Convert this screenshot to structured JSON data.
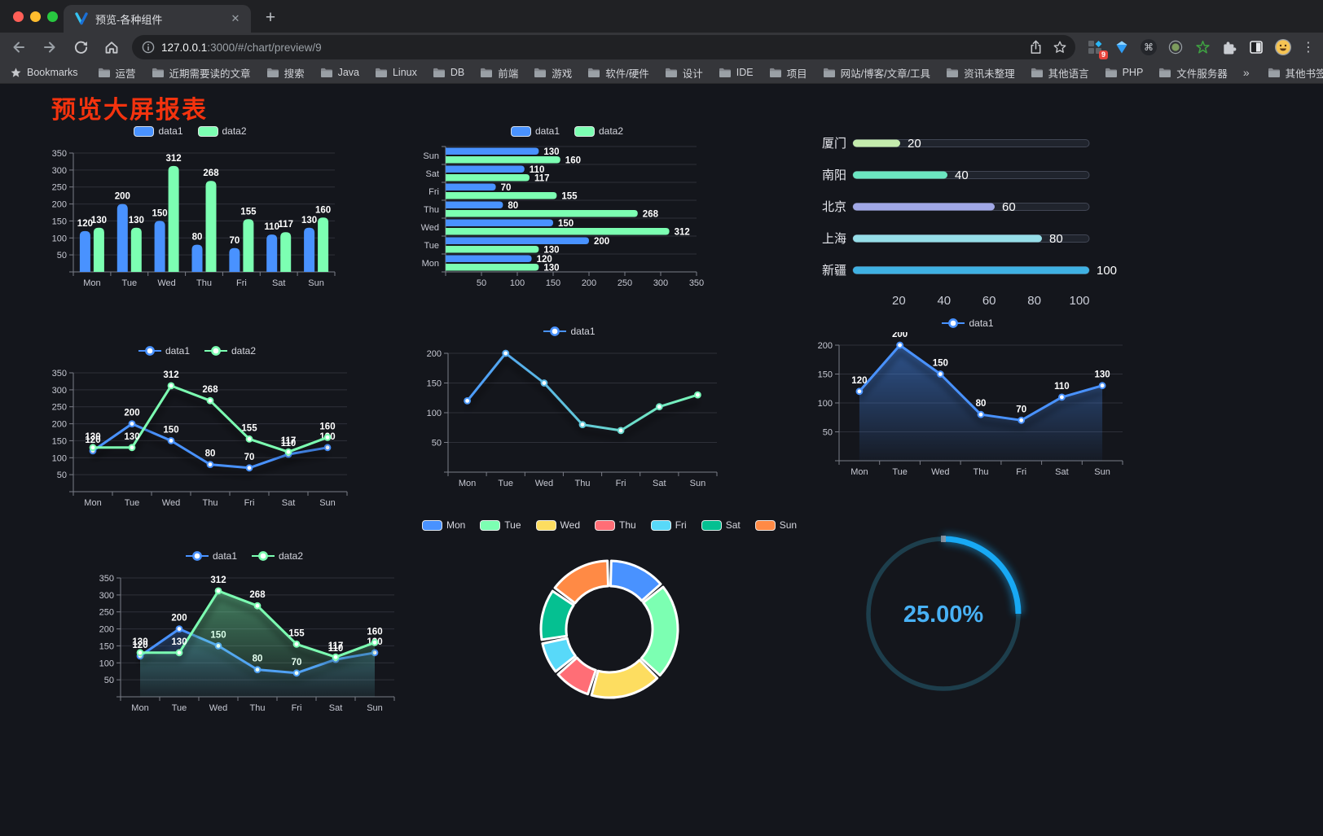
{
  "browser": {
    "tab_title": "预览-各种组件",
    "close_glyph": "✕",
    "new_tab_glyph": "+",
    "url_host": "127.0.0.1",
    "url_path": ":3000/#/chart/preview/9",
    "extensions_badge": "9",
    "menu_glyph": "⋮",
    "command_glyph": "⌘",
    "bookmarks_label": "Bookmarks",
    "bookmarks": [
      "运营",
      "近期需要读的文章",
      "搜索",
      "Java",
      "Linux",
      "DB",
      "前端",
      "游戏",
      "软件/硬件",
      "设计",
      "IDE",
      "项目",
      "网站/博客/文章/工具",
      "资讯未整理",
      "其他语言",
      "PHP",
      "文件服务器"
    ],
    "bookmarks_overflow": "»",
    "other_bookmarks": "其他书签",
    "window_buttons": [
      {
        "name": "close",
        "color": "#ff5f57"
      },
      {
        "name": "minimize",
        "color": "#febc2e"
      },
      {
        "name": "zoom",
        "color": "#28c840"
      }
    ]
  },
  "page": {
    "title": "预览大屏报表",
    "title_color": "#f4330e"
  },
  "chart_data": [
    {
      "id": "bar-grouped",
      "type": "bar",
      "categories": [
        "Mon",
        "Tue",
        "Wed",
        "Thu",
        "Fri",
        "Sat",
        "Sun"
      ],
      "series": [
        {
          "name": "data1",
          "color": "#4992ff",
          "values": [
            120,
            200,
            150,
            80,
            70,
            110,
            130
          ]
        },
        {
          "name": "data2",
          "color": "#7cffb2",
          "values": [
            130,
            130,
            312,
            268,
            155,
            117,
            160
          ]
        }
      ],
      "ylim": [
        0,
        350
      ],
      "yticks": [
        0,
        50,
        100,
        150,
        200,
        250,
        300,
        350
      ],
      "labels": true,
      "legend": true,
      "grid": true
    },
    {
      "id": "bar-horizontal",
      "type": "hbar",
      "categories": [
        "Sun",
        "Sat",
        "Fri",
        "Thu",
        "Wed",
        "Tue",
        "Mon"
      ],
      "series": [
        {
          "name": "data1",
          "color": "#4992ff",
          "values": [
            130,
            110,
            70,
            80,
            150,
            200,
            120
          ]
        },
        {
          "name": "data2",
          "color": "#7cffb2",
          "values": [
            160,
            117,
            155,
            268,
            312,
            130,
            130
          ]
        }
      ],
      "xlim": [
        0,
        350
      ],
      "xticks": [
        0,
        50,
        100,
        150,
        200,
        250,
        300,
        350
      ],
      "labels": true,
      "legend": true,
      "grid": true
    },
    {
      "id": "progress-bars",
      "type": "progress",
      "rows": [
        {
          "label": "厦门",
          "value": 20,
          "color": "#c4ebad"
        },
        {
          "label": "南阳",
          "value": 40,
          "color": "#6be6c1"
        },
        {
          "label": "北京",
          "value": 60,
          "color": "#a0a7e6"
        },
        {
          "label": "上海",
          "value": 80,
          "color": "#96dee8"
        },
        {
          "label": "新疆",
          "value": 100,
          "color": "#3fb1e3"
        }
      ],
      "xlim": [
        0,
        100
      ],
      "xticks": [
        0,
        20,
        40,
        60,
        80,
        100
      ]
    },
    {
      "id": "line-dual",
      "type": "line",
      "categories": [
        "Mon",
        "Tue",
        "Wed",
        "Thu",
        "Fri",
        "Sat",
        "Sun"
      ],
      "series": [
        {
          "name": "data1",
          "color": "#4992ff",
          "values": [
            120,
            200,
            150,
            80,
            70,
            110,
            130
          ]
        },
        {
          "name": "data2",
          "color": "#7cffb2",
          "values": [
            130,
            130,
            312,
            268,
            155,
            117,
            160
          ]
        }
      ],
      "ylim": [
        0,
        350
      ],
      "yticks": [
        0,
        50,
        100,
        150,
        200,
        250,
        300,
        350
      ],
      "labels": true,
      "legend": true,
      "shadow": true,
      "grid": true
    },
    {
      "id": "line-gradient",
      "type": "line",
      "categories": [
        "Mon",
        "Tue",
        "Wed",
        "Thu",
        "Fri",
        "Sat",
        "Sun"
      ],
      "series": [
        {
          "name": "data1",
          "color": "#4992ff",
          "gradient": [
            "#4992ff",
            "#7cffb2"
          ],
          "values": [
            120,
            200,
            150,
            80,
            70,
            110,
            130
          ]
        }
      ],
      "ylim": [
        0,
        200
      ],
      "yticks": [
        0,
        50,
        100,
        150,
        200
      ],
      "labels": false,
      "legend": true,
      "shadow": true,
      "grid": true
    },
    {
      "id": "line-area",
      "type": "line",
      "categories": [
        "Mon",
        "Tue",
        "Wed",
        "Thu",
        "Fri",
        "Sat",
        "Sun"
      ],
      "series": [
        {
          "name": "data1",
          "color": "#4992ff",
          "area": true,
          "values": [
            120,
            200,
            150,
            80,
            70,
            110,
            130
          ]
        }
      ],
      "ylim": [
        0,
        200
      ],
      "yticks": [
        0,
        50,
        100,
        150,
        200
      ],
      "labels": true,
      "legend": true,
      "shadow": true,
      "grid": true
    },
    {
      "id": "line-dual-area",
      "type": "line",
      "categories": [
        "Mon",
        "Tue",
        "Wed",
        "Thu",
        "Fri",
        "Sat",
        "Sun"
      ],
      "series": [
        {
          "name": "data1",
          "color": "#4992ff",
          "area": true,
          "values": [
            120,
            200,
            150,
            80,
            70,
            110,
            130
          ]
        },
        {
          "name": "data2",
          "color": "#7cffb2",
          "area": true,
          "values": [
            130,
            130,
            312,
            268,
            155,
            117,
            160
          ]
        }
      ],
      "ylim": [
        0,
        350
      ],
      "yticks": [
        0,
        50,
        100,
        150,
        200,
        250,
        300,
        350
      ],
      "labels": true,
      "legend": true,
      "shadow": true,
      "grid": true
    },
    {
      "id": "donut",
      "type": "pie",
      "categories": [
        "Mon",
        "Tue",
        "Wed",
        "Thu",
        "Fri",
        "Sat",
        "Sun"
      ],
      "values": [
        120,
        200,
        150,
        80,
        70,
        110,
        130
      ],
      "colors": [
        "#4992ff",
        "#7cffb2",
        "#fddd60",
        "#ff6e76",
        "#58d9f9",
        "#05c091",
        "#ff8a45"
      ],
      "legend": true,
      "inner_radius": 53,
      "outer_radius": 84
    },
    {
      "id": "gauge",
      "type": "gauge",
      "percent": 25,
      "label": "25.00%",
      "color": "#18a9f4",
      "track_color": "#1d3e4c",
      "text_color": "#48b1f5"
    }
  ]
}
